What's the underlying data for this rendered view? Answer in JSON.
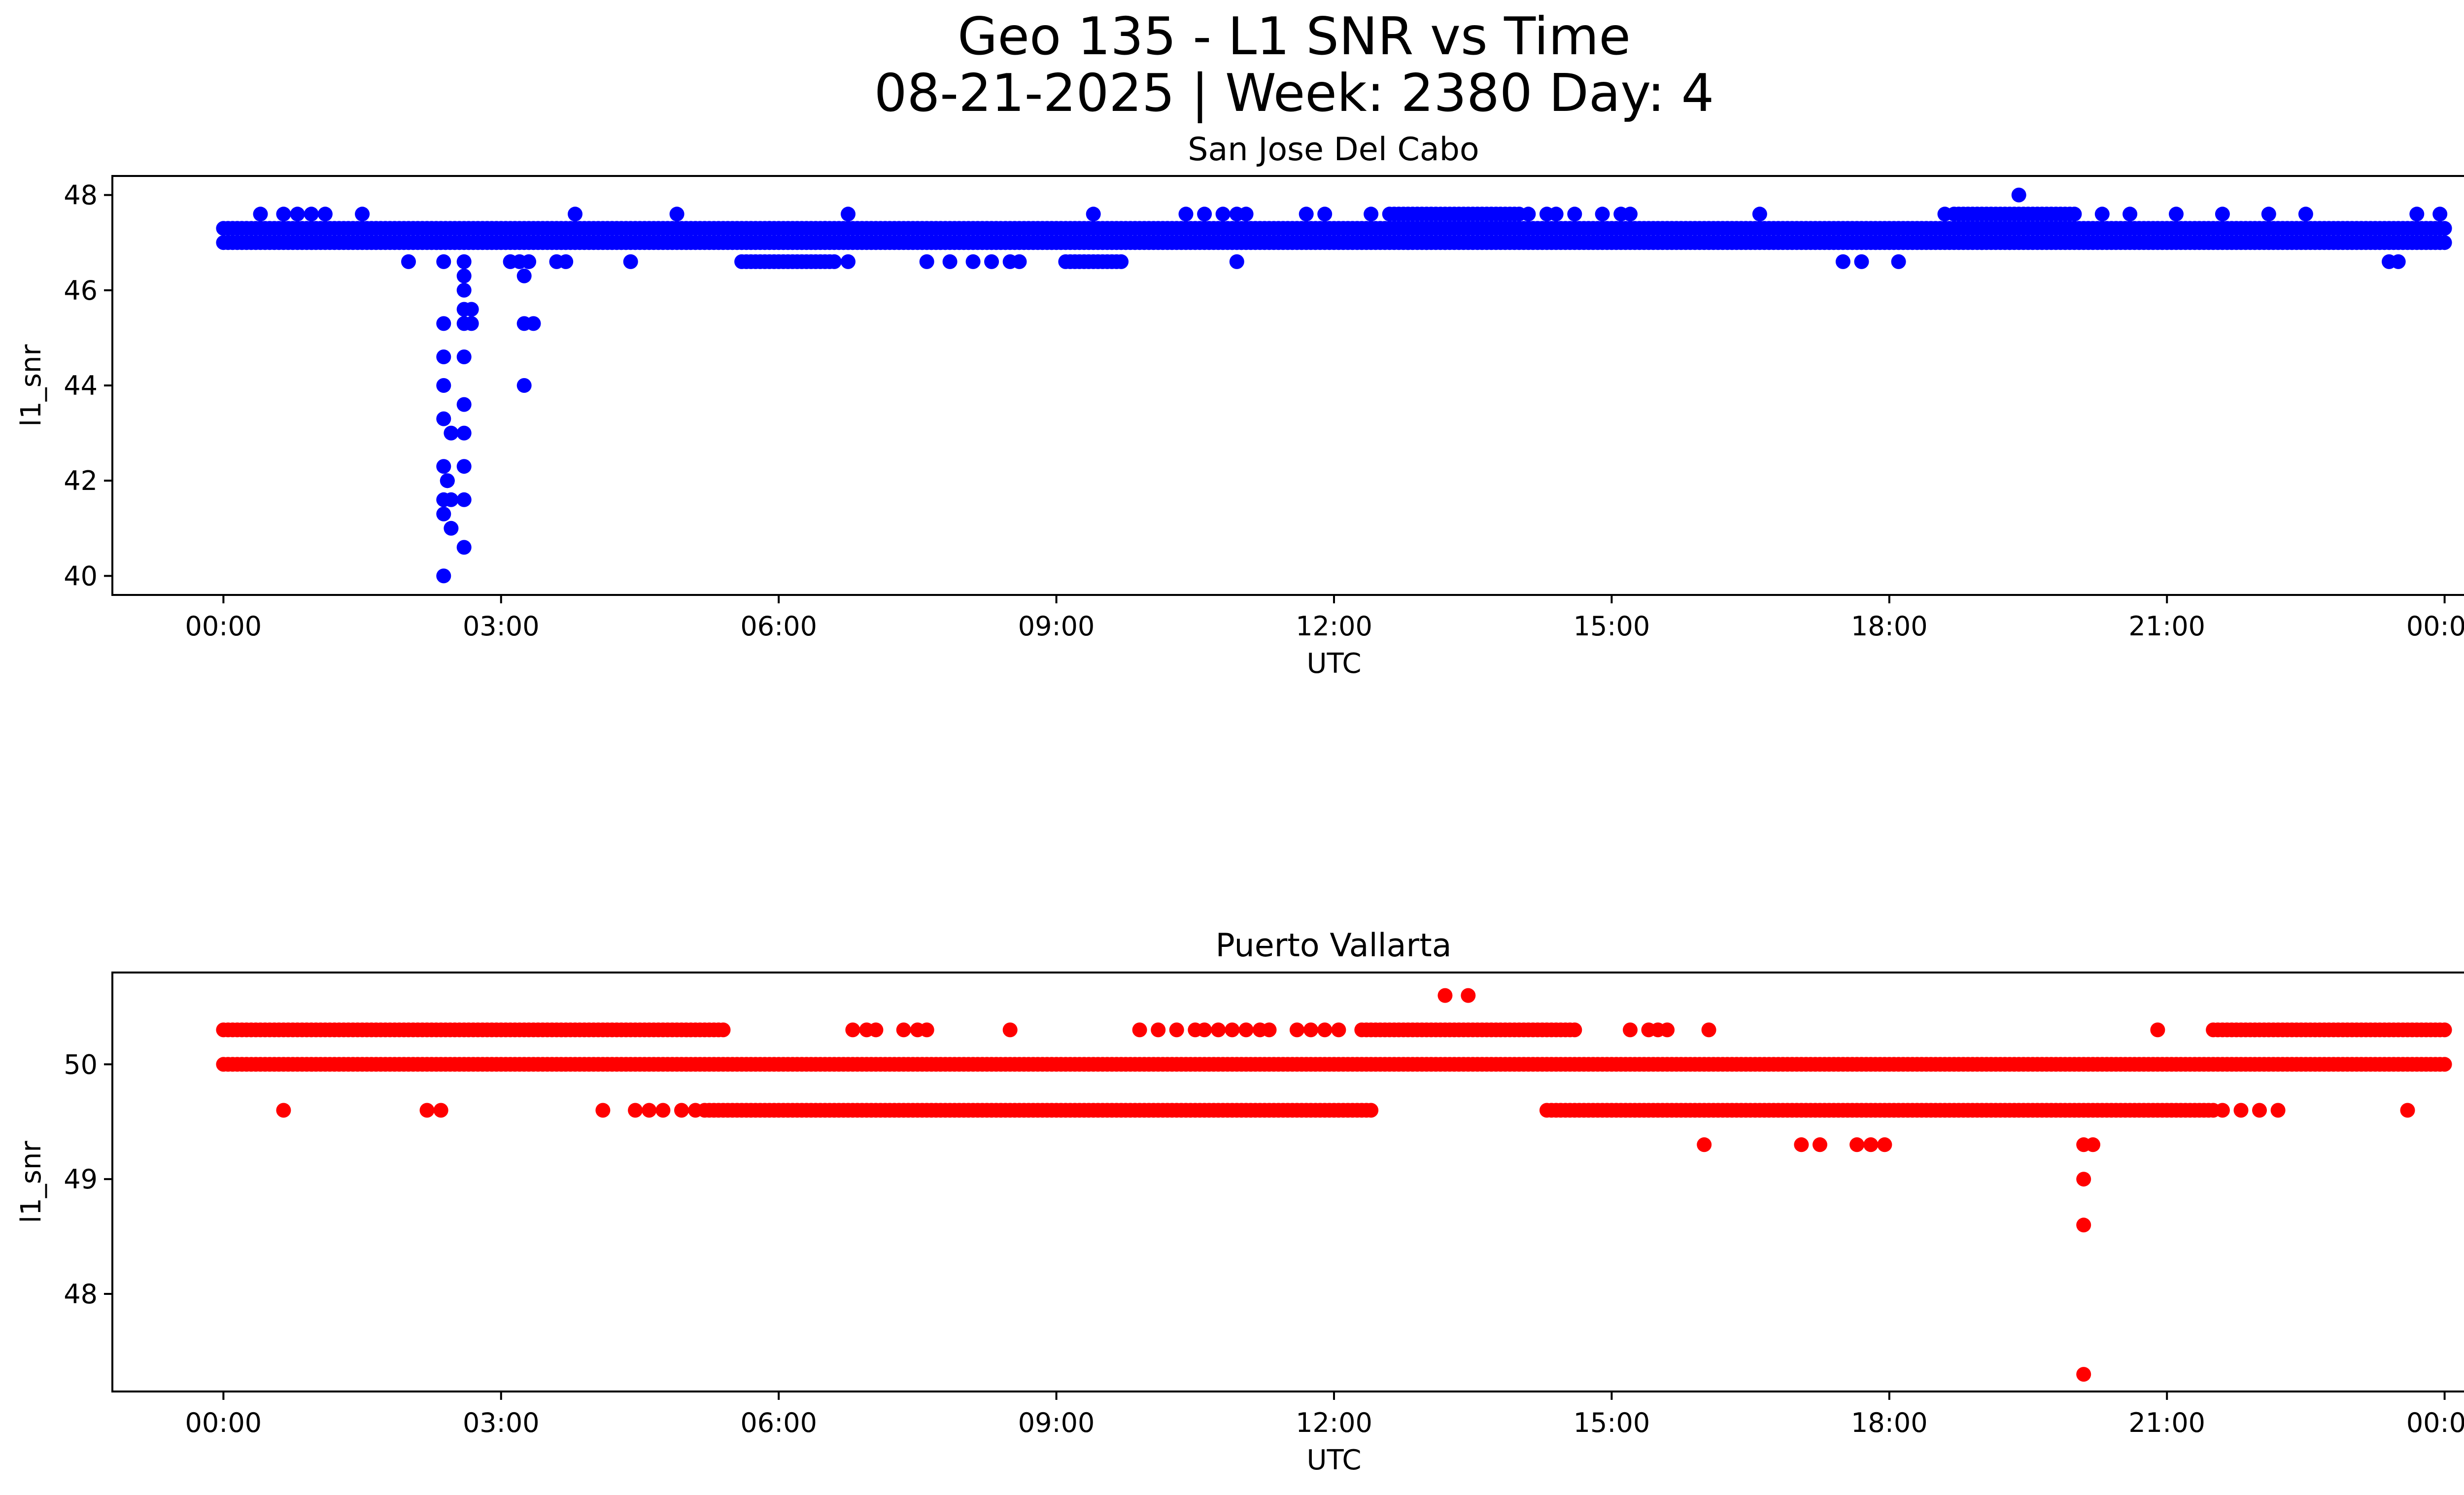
{
  "figure": {
    "title_line1": "Geo 135 - L1 SNR vs Time",
    "title_line2": "08-21-2025 | Week: 2380 Day: 4"
  },
  "chart_data": [
    {
      "type": "scatter",
      "title": "San Jose Del Cabo",
      "xlabel": "UTC",
      "ylabel": "l1_snr",
      "color": "#0000ff",
      "xlim_hours": [
        -1.2,
        25.2
      ],
      "ylim": [
        39.6,
        48.4
      ],
      "x_ticks": [
        0,
        3,
        6,
        9,
        12,
        15,
        18,
        21,
        24
      ],
      "x_tick_labels": [
        "00:00",
        "03:00",
        "06:00",
        "09:00",
        "12:00",
        "15:00",
        "18:00",
        "21:00",
        "00:00"
      ],
      "y_ticks": [
        40,
        42,
        44,
        46,
        48
      ],
      "y_tick_labels": [
        "40",
        "42",
        "44",
        "46",
        "48"
      ],
      "bands": [
        {
          "y": 47.0,
          "from": 0.0,
          "to": 24.0
        },
        {
          "y": 47.3,
          "from": 0.0,
          "to": 24.0
        },
        {
          "y": 47.6,
          "from": 12.6,
          "to": 14.0
        },
        {
          "y": 46.6,
          "from": 5.6,
          "to": 6.6
        },
        {
          "y": 46.6,
          "from": 9.1,
          "to": 9.7
        },
        {
          "y": 47.6,
          "from": 18.7,
          "to": 20.0
        }
      ],
      "points": [
        [
          0.4,
          47.6
        ],
        [
          0.65,
          47.6
        ],
        [
          0.8,
          47.6
        ],
        [
          0.95,
          47.6
        ],
        [
          1.1,
          47.6
        ],
        [
          1.5,
          47.6
        ],
        [
          2.0,
          46.6
        ],
        [
          2.38,
          46.6
        ],
        [
          2.38,
          45.3
        ],
        [
          2.38,
          44.6
        ],
        [
          2.38,
          44.0
        ],
        [
          2.38,
          43.3
        ],
        [
          2.38,
          42.3
        ],
        [
          2.38,
          41.6
        ],
        [
          2.38,
          41.3
        ],
        [
          2.38,
          40.0
        ],
        [
          2.42,
          42.0
        ],
        [
          2.46,
          43.0
        ],
        [
          2.46,
          41.0
        ],
        [
          2.46,
          41.6
        ],
        [
          2.42,
          42.0
        ],
        [
          2.6,
          46.6
        ],
        [
          2.6,
          46.3
        ],
        [
          2.6,
          46.0
        ],
        [
          2.6,
          45.6
        ],
        [
          2.6,
          45.3
        ],
        [
          2.6,
          44.6
        ],
        [
          2.6,
          43.6
        ],
        [
          2.6,
          43.0
        ],
        [
          2.6,
          42.3
        ],
        [
          2.6,
          41.6
        ],
        [
          2.6,
          40.6
        ],
        [
          2.68,
          45.6
        ],
        [
          2.68,
          45.3
        ],
        [
          3.1,
          46.6
        ],
        [
          3.2,
          46.6
        ],
        [
          3.25,
          46.3
        ],
        [
          3.25,
          45.3
        ],
        [
          3.25,
          44.0
        ],
        [
          3.3,
          46.6
        ],
        [
          3.35,
          45.3
        ],
        [
          3.6,
          46.6
        ],
        [
          3.7,
          46.6
        ],
        [
          3.8,
          47.6
        ],
        [
          4.4,
          46.6
        ],
        [
          4.9,
          47.6
        ],
        [
          5.9,
          47.3
        ],
        [
          6.5,
          47.3
        ],
        [
          6.75,
          47.6
        ],
        [
          6.75,
          46.6
        ],
        [
          7.6,
          46.6
        ],
        [
          7.85,
          46.6
        ],
        [
          8.1,
          46.6
        ],
        [
          8.3,
          46.6
        ],
        [
          8.5,
          46.6
        ],
        [
          8.6,
          46.6
        ],
        [
          9.4,
          47.6
        ],
        [
          10.4,
          47.6
        ],
        [
          10.6,
          47.6
        ],
        [
          10.8,
          47.6
        ],
        [
          10.95,
          47.6
        ],
        [
          11.05,
          47.6
        ],
        [
          10.95,
          46.6
        ],
        [
          11.7,
          47.6
        ],
        [
          11.9,
          47.6
        ],
        [
          12.4,
          47.6
        ],
        [
          12.8,
          47.0
        ],
        [
          13.0,
          47.0
        ],
        [
          13.2,
          47.0
        ],
        [
          14.1,
          47.6
        ],
        [
          14.3,
          47.6
        ],
        [
          14.4,
          47.6
        ],
        [
          14.6,
          47.6
        ],
        [
          14.9,
          47.6
        ],
        [
          15.1,
          47.6
        ],
        [
          15.2,
          47.6
        ],
        [
          16.6,
          47.6
        ],
        [
          17.5,
          46.6
        ],
        [
          17.7,
          46.6
        ],
        [
          18.1,
          46.6
        ],
        [
          18.6,
          47.6
        ],
        [
          19.0,
          47.0
        ],
        [
          19.3,
          47.0
        ],
        [
          19.4,
          48.0
        ],
        [
          20.3,
          47.6
        ],
        [
          20.6,
          47.6
        ],
        [
          21.1,
          47.6
        ],
        [
          21.6,
          47.6
        ],
        [
          22.1,
          47.6
        ],
        [
          22.5,
          47.6
        ],
        [
          23.4,
          46.6
        ],
        [
          23.5,
          46.6
        ],
        [
          23.7,
          47.6
        ],
        [
          23.95,
          47.6
        ]
      ]
    },
    {
      "type": "scatter",
      "title": "Puerto Vallarta",
      "xlabel": "UTC",
      "ylabel": "l1_snr",
      "color": "#ff0000",
      "xlim_hours": [
        -1.2,
        25.2
      ],
      "ylim": [
        47.15,
        50.8
      ],
      "x_ticks": [
        0,
        3,
        6,
        9,
        12,
        15,
        18,
        21,
        24
      ],
      "x_tick_labels": [
        "00:00",
        "03:00",
        "06:00",
        "09:00",
        "12:00",
        "15:00",
        "18:00",
        "21:00",
        "00:00"
      ],
      "y_ticks": [
        48,
        49,
        50
      ],
      "y_tick_labels": [
        "48",
        "49",
        "50"
      ],
      "bands": [
        {
          "y": 50.0,
          "from": 0.0,
          "to": 24.0
        },
        {
          "y": 50.3,
          "from": 0.0,
          "to": 5.4
        },
        {
          "y": 50.3,
          "from": 12.3,
          "to": 14.6
        },
        {
          "y": 50.3,
          "from": 21.5,
          "to": 24.0
        },
        {
          "y": 49.6,
          "from": 5.2,
          "to": 12.4
        },
        {
          "y": 49.6,
          "from": 14.3,
          "to": 21.5
        }
      ],
      "points": [
        [
          0.65,
          49.6
        ],
        [
          2.2,
          49.6
        ],
        [
          2.35,
          49.6
        ],
        [
          4.1,
          49.6
        ],
        [
          4.45,
          49.6
        ],
        [
          4.6,
          49.6
        ],
        [
          4.75,
          49.6
        ],
        [
          4.95,
          49.6
        ],
        [
          5.1,
          49.6
        ],
        [
          6.8,
          50.3
        ],
        [
          6.95,
          50.3
        ],
        [
          7.05,
          50.3
        ],
        [
          7.35,
          50.3
        ],
        [
          7.5,
          50.3
        ],
        [
          7.6,
          50.3
        ],
        [
          8.5,
          50.3
        ],
        [
          9.9,
          50.3
        ],
        [
          10.1,
          50.3
        ],
        [
          10.3,
          50.3
        ],
        [
          10.5,
          50.3
        ],
        [
          10.6,
          50.3
        ],
        [
          10.75,
          50.3
        ],
        [
          10.9,
          50.3
        ],
        [
          11.05,
          50.3
        ],
        [
          11.2,
          50.3
        ],
        [
          11.3,
          50.3
        ],
        [
          11.6,
          50.3
        ],
        [
          11.75,
          50.3
        ],
        [
          11.9,
          50.3
        ],
        [
          12.05,
          50.3
        ],
        [
          13.2,
          50.6
        ],
        [
          13.45,
          50.6
        ],
        [
          15.2,
          50.3
        ],
        [
          15.4,
          50.3
        ],
        [
          15.5,
          50.3
        ],
        [
          15.6,
          50.3
        ],
        [
          16.05,
          50.3
        ],
        [
          16.0,
          49.3
        ],
        [
          17.05,
          49.3
        ],
        [
          17.25,
          49.3
        ],
        [
          17.65,
          49.3
        ],
        [
          17.8,
          49.3
        ],
        [
          17.95,
          49.3
        ],
        [
          20.1,
          49.3
        ],
        [
          20.2,
          49.3
        ],
        [
          20.1,
          49.0
        ],
        [
          20.1,
          48.6
        ],
        [
          20.1,
          47.3
        ],
        [
          20.9,
          50.3
        ],
        [
          21.6,
          49.6
        ],
        [
          21.8,
          49.6
        ],
        [
          22.0,
          49.6
        ],
        [
          22.2,
          49.6
        ],
        [
          23.6,
          49.6
        ]
      ]
    }
  ]
}
